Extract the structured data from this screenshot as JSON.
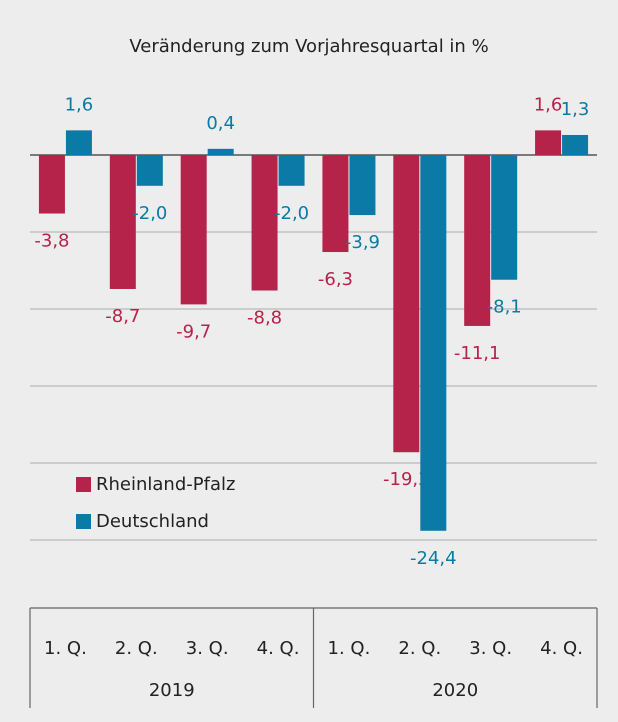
{
  "chart_data": {
    "type": "bar",
    "title": "Veränderung zum Vorjahresquartal in %",
    "categories": [
      "1. Q.",
      "2. Q.",
      "3. Q.",
      "4. Q.",
      "1. Q.",
      "2. Q.",
      "3. Q.",
      "4. Q."
    ],
    "years": [
      "2019",
      "2020"
    ],
    "series": [
      {
        "name": "Rheinland-Pfalz",
        "color": "#b5234a",
        "values": [
          -3.8,
          -8.7,
          -9.7,
          -8.8,
          -6.3,
          -19.3,
          -11.1,
          1.6
        ],
        "value_labels": [
          "-3,8",
          "-8,7",
          "-9,7",
          "-8,8",
          "-6,3",
          "-19,3",
          "-11,1",
          "1,6"
        ]
      },
      {
        "name": "Deutschland",
        "color": "#0b7aa6",
        "values": [
          1.6,
          -2.0,
          0.4,
          -2.0,
          -3.9,
          -24.4,
          -8.1,
          1.3
        ],
        "value_labels": [
          "1,6",
          "-2,0",
          "0,4",
          "-2,0",
          "-3,9",
          "-24,4",
          "-8,1",
          "1,3"
        ]
      }
    ],
    "ylim": [
      -29,
      6
    ],
    "yticks": [
      0,
      -5,
      -10,
      -15,
      -20,
      -25
    ],
    "grid": true
  }
}
